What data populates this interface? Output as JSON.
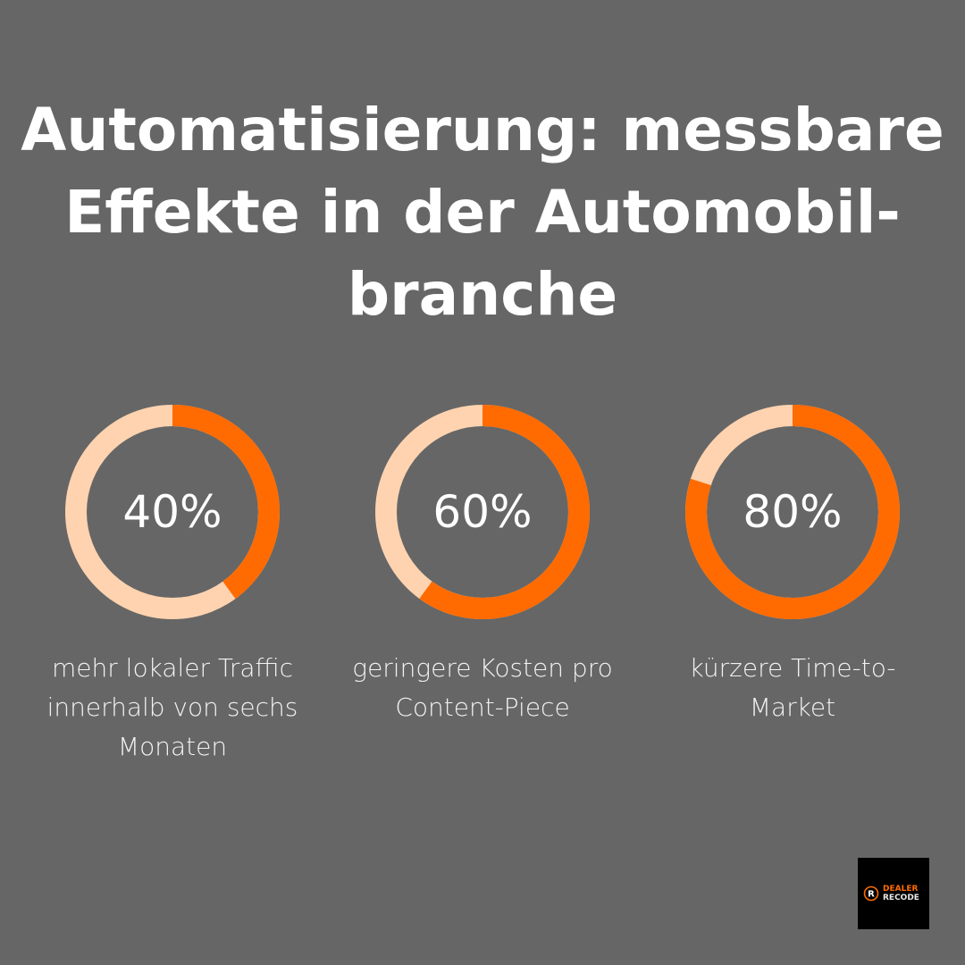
{
  "title": "Automatisierung: messbare Effekte in der Automobil-branche",
  "title_lines": [
    "Automatisierung: messbare",
    "Effekte in der Automobil-",
    "branche"
  ],
  "colors": {
    "background": "#666666",
    "accent": "#FF6B00",
    "track": "#FFD3B0"
  },
  "chart_data": [
    {
      "type": "pie",
      "variant": "donut",
      "value": 40,
      "max": 100,
      "label": "40%",
      "caption": "mehr lokaler Traffic innerhalb von sechs Monaten"
    },
    {
      "type": "pie",
      "variant": "donut",
      "value": 60,
      "max": 100,
      "label": "60%",
      "caption": "geringere Kosten pro Content-Piece"
    },
    {
      "type": "pie",
      "variant": "donut",
      "value": 80,
      "max": 100,
      "label": "80%",
      "caption": "kürzere Time-to-Market"
    }
  ],
  "logo": {
    "line1": "DEALER",
    "line2": "RECODE"
  }
}
